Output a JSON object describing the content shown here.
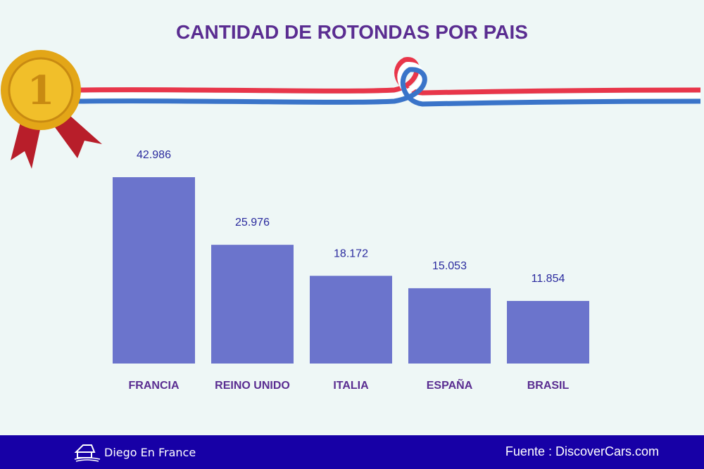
{
  "title": "CANTIDAD DE ROTONDAS POR PAIS",
  "chart_data": {
    "type": "bar",
    "title": "CANTIDAD DE ROTONDAS POR PAIS",
    "categories": [
      "FRANCIA",
      "REINO UNIDO",
      "ITALIA",
      "ESPAÑA",
      "BRASIL"
    ],
    "values": [
      42986,
      25976,
      18172,
      15053,
      11854
    ],
    "data_labels": [
      "42.986",
      "25.976",
      "18.172",
      "15.053",
      "11.854"
    ],
    "xlabel": "",
    "ylabel": "",
    "grid": false,
    "bar_color": "#6b74cc",
    "label_color": "#2a2a9e",
    "category_color": "#5a2d91"
  },
  "footer": {
    "brand": "Diego En France",
    "source": "Fuente : DiscoverCars.com",
    "background": "#1700a6"
  }
}
